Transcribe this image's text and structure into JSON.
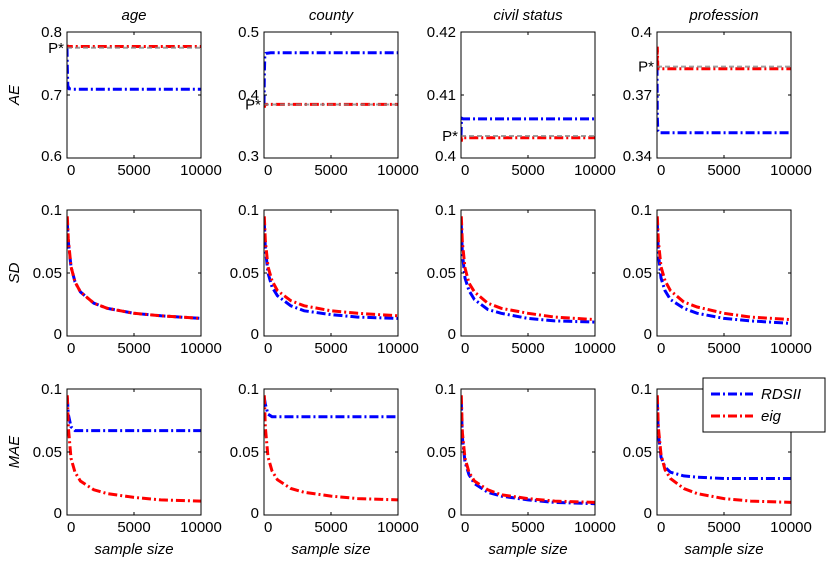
{
  "chart_data": {
    "type": "line",
    "grid": false,
    "legend": {
      "placement": "top-right of bottom-right panel",
      "entries": [
        "RDSII",
        "eig"
      ]
    },
    "series_styles": [
      {
        "name": "RDSII",
        "color": "#0000ff",
        "dash": "dash-dot"
      },
      {
        "name": "eig",
        "color": "#ff0000",
        "dash": "dash-dot"
      }
    ],
    "columns": [
      "age",
      "county",
      "civil status",
      "profession"
    ],
    "rows": [
      "AE",
      "SD",
      "MAE"
    ],
    "xlabel": "sample size",
    "x_ticks": [
      "0",
      "5000",
      "10000"
    ],
    "xlim": [
      0,
      10000
    ],
    "panels": [
      {
        "row": "AE",
        "col": "age",
        "ylim": [
          0.6,
          0.8
        ],
        "y_ticks": [
          "0.6",
          "0.7",
          "0.8"
        ],
        "p_star": {
          "label": "P*",
          "value": 0.775
        },
        "series": [
          {
            "name": "RDSII",
            "x": [
              0,
              20,
              60,
              150,
              500,
              2000,
              5000,
              10000
            ],
            "y": [
              0.775,
              0.745,
              0.715,
              0.71,
              0.709,
              0.709,
              0.709,
              0.709
            ]
          },
          {
            "name": "eig",
            "x": [
              0,
              20,
              60,
              150,
              500,
              2000,
              5000,
              10000
            ],
            "y": [
              0.775,
              0.779,
              0.777,
              0.777,
              0.777,
              0.777,
              0.777,
              0.777
            ]
          }
        ]
      },
      {
        "row": "AE",
        "col": "county",
        "ylim": [
          0.3,
          0.5
        ],
        "y_ticks": [
          "0.3",
          "0.4",
          "0.5"
        ],
        "p_star": {
          "label": "P*",
          "value": 0.385
        },
        "series": [
          {
            "name": "RDSII",
            "x": [
              0,
              20,
              60,
              150,
              500,
              2000,
              5000,
              10000
            ],
            "y": [
              0.385,
              0.43,
              0.462,
              0.466,
              0.467,
              0.467,
              0.467,
              0.467
            ]
          },
          {
            "name": "eig",
            "x": [
              0,
              20,
              60,
              150,
              500,
              2000,
              5000,
              10000
            ],
            "y": [
              0.385,
              0.38,
              0.384,
              0.385,
              0.385,
              0.385,
              0.385,
              0.385
            ]
          }
        ]
      },
      {
        "row": "AE",
        "col": "civil status",
        "ylim": [
          0.4,
          0.42
        ],
        "y_ticks": [
          "0.4",
          "0.41",
          "0.42"
        ],
        "p_star": {
          "label": "P*",
          "value": 0.4035
        },
        "series": [
          {
            "name": "RDSII",
            "x": [
              0,
              20,
              60,
              150,
              500,
              2000,
              5000,
              10000
            ],
            "y": [
              0.4035,
              0.4055,
              0.4063,
              0.4062,
              0.4062,
              0.4062,
              0.4062,
              0.4062
            ]
          },
          {
            "name": "eig",
            "x": [
              0,
              20,
              60,
              150,
              500,
              2000,
              5000,
              10000
            ],
            "y": [
              0.4035,
              0.4026,
              0.4032,
              0.4032,
              0.4032,
              0.4032,
              0.4032,
              0.4032
            ]
          }
        ]
      },
      {
        "row": "AE",
        "col": "profession",
        "ylim": [
          0.34,
          0.4
        ],
        "y_ticks": [
          "0.34",
          "0.37",
          "0.4"
        ],
        "p_star": {
          "label": "P*",
          "value": 0.3835
        },
        "series": [
          {
            "name": "RDSII",
            "x": [
              0,
              20,
              60,
              150,
              500,
              2000,
              5000,
              10000
            ],
            "y": [
              0.3835,
              0.36,
              0.353,
              0.352,
              0.352,
              0.352,
              0.352,
              0.352
            ]
          },
          {
            "name": "eig",
            "x": [
              0,
              20,
              60,
              150,
              500,
              2000,
              5000,
              10000
            ],
            "y": [
              0.3835,
              0.393,
              0.383,
              0.3825,
              0.3825,
              0.3825,
              0.3825,
              0.3825
            ]
          }
        ]
      },
      {
        "row": "SD",
        "col": "age",
        "ylim": [
          0,
          0.1
        ],
        "y_ticks": [
          "0",
          "0.05",
          "0.1"
        ],
        "series": [
          {
            "name": "RDSII",
            "x": [
              20,
              100,
              300,
              600,
              1000,
              2000,
              3000,
              5000,
              7000,
              10000
            ],
            "y": [
              0.09,
              0.075,
              0.055,
              0.043,
              0.035,
              0.026,
              0.022,
              0.018,
              0.016,
              0.014
            ]
          },
          {
            "name": "eig",
            "x": [
              20,
              100,
              300,
              600,
              1000,
              2000,
              3000,
              5000,
              7000,
              10000
            ],
            "y": [
              0.095,
              0.077,
              0.055,
              0.043,
              0.035,
              0.026,
              0.022,
              0.018,
              0.016,
              0.014
            ]
          }
        ]
      },
      {
        "row": "SD",
        "col": "county",
        "ylim": [
          0,
          0.1
        ],
        "y_ticks": [
          "0",
          "0.05",
          "0.1"
        ],
        "series": [
          {
            "name": "RDSII",
            "x": [
              20,
              100,
              300,
              600,
              1000,
              2000,
              3000,
              5000,
              7000,
              10000
            ],
            "y": [
              0.09,
              0.07,
              0.05,
              0.039,
              0.032,
              0.024,
              0.02,
              0.017,
              0.015,
              0.014
            ]
          },
          {
            "name": "eig",
            "x": [
              20,
              100,
              300,
              600,
              1000,
              2000,
              3000,
              5000,
              7000,
              10000
            ],
            "y": [
              0.095,
              0.076,
              0.055,
              0.044,
              0.036,
              0.028,
              0.024,
              0.02,
              0.018,
              0.016
            ]
          }
        ]
      },
      {
        "row": "SD",
        "col": "civil status",
        "ylim": [
          0,
          0.1
        ],
        "y_ticks": [
          "0",
          "0.05",
          "0.1"
        ],
        "series": [
          {
            "name": "RDSII",
            "x": [
              20,
              100,
              300,
              600,
              1000,
              2000,
              3000,
              5000,
              7000,
              10000
            ],
            "y": [
              0.088,
              0.066,
              0.046,
              0.036,
              0.029,
              0.021,
              0.018,
              0.014,
              0.012,
              0.011
            ]
          },
          {
            "name": "eig",
            "x": [
              20,
              100,
              300,
              600,
              1000,
              2000,
              3000,
              5000,
              7000,
              10000
            ],
            "y": [
              0.095,
              0.075,
              0.054,
              0.042,
              0.035,
              0.026,
              0.022,
              0.018,
              0.015,
              0.013
            ]
          }
        ]
      },
      {
        "row": "SD",
        "col": "profession",
        "ylim": [
          0,
          0.1
        ],
        "y_ticks": [
          "0",
          "0.05",
          "0.1"
        ],
        "series": [
          {
            "name": "RDSII",
            "x": [
              20,
              100,
              300,
              600,
              1000,
              2000,
              3000,
              5000,
              7000,
              10000
            ],
            "y": [
              0.09,
              0.066,
              0.046,
              0.036,
              0.029,
              0.022,
              0.018,
              0.014,
              0.012,
              0.01
            ]
          },
          {
            "name": "eig",
            "x": [
              20,
              100,
              300,
              600,
              1000,
              2000,
              3000,
              5000,
              7000,
              10000
            ],
            "y": [
              0.095,
              0.076,
              0.055,
              0.044,
              0.036,
              0.027,
              0.023,
              0.018,
              0.015,
              0.013
            ]
          }
        ]
      },
      {
        "row": "MAE",
        "col": "age",
        "ylim": [
          0,
          0.1
        ],
        "y_ticks": [
          "0",
          "0.05",
          "0.1"
        ],
        "series": [
          {
            "name": "RDSII",
            "x": [
              20,
              100,
              300,
              600,
              1000,
              2000,
              5000,
              10000
            ],
            "y": [
              0.093,
              0.08,
              0.07,
              0.067,
              0.067,
              0.067,
              0.067,
              0.067
            ]
          },
          {
            "name": "eig",
            "x": [
              20,
              100,
              300,
              600,
              1000,
              2000,
              3000,
              5000,
              7000,
              10000
            ],
            "y": [
              0.095,
              0.07,
              0.045,
              0.034,
              0.027,
              0.02,
              0.017,
              0.014,
              0.012,
              0.011
            ]
          }
        ]
      },
      {
        "row": "MAE",
        "col": "county",
        "ylim": [
          0,
          0.1
        ],
        "y_ticks": [
          "0",
          "0.05",
          "0.1"
        ],
        "series": [
          {
            "name": "RDSII",
            "x": [
              20,
              100,
              300,
              600,
              1000,
              2000,
              5000,
              10000
            ],
            "y": [
              0.093,
              0.088,
              0.08,
              0.078,
              0.078,
              0.078,
              0.078,
              0.078
            ]
          },
          {
            "name": "eig",
            "x": [
              20,
              100,
              300,
              600,
              1000,
              2000,
              3000,
              5000,
              7000,
              10000
            ],
            "y": [
              0.095,
              0.07,
              0.046,
              0.035,
              0.028,
              0.021,
              0.018,
              0.015,
              0.013,
              0.012
            ]
          }
        ]
      },
      {
        "row": "MAE",
        "col": "civil status",
        "ylim": [
          0,
          0.1
        ],
        "y_ticks": [
          "0",
          "0.05",
          "0.1"
        ],
        "series": [
          {
            "name": "RDSII",
            "x": [
              20,
              100,
              300,
              600,
              1000,
              2000,
              3000,
              5000,
              7000,
              10000
            ],
            "y": [
              0.09,
              0.062,
              0.042,
              0.032,
              0.025,
              0.018,
              0.015,
              0.012,
              0.01,
              0.009
            ]
          },
          {
            "name": "eig",
            "x": [
              20,
              100,
              300,
              600,
              1000,
              2000,
              3000,
              5000,
              7000,
              10000
            ],
            "y": [
              0.095,
              0.066,
              0.045,
              0.034,
              0.027,
              0.02,
              0.016,
              0.013,
              0.011,
              0.01
            ]
          }
        ]
      },
      {
        "row": "MAE",
        "col": "profession",
        "ylim": [
          0,
          0.1
        ],
        "y_ticks": [
          "0",
          "0.05",
          "0.1"
        ],
        "series": [
          {
            "name": "RDSII",
            "x": [
              20,
              100,
              300,
              600,
              1000,
              2000,
              3000,
              5000,
              7000,
              10000
            ],
            "y": [
              0.09,
              0.065,
              0.046,
              0.038,
              0.034,
              0.031,
              0.03,
              0.029,
              0.029,
              0.029
            ]
          },
          {
            "name": "eig",
            "x": [
              20,
              100,
              300,
              600,
              1000,
              2000,
              3000,
              5000,
              7000,
              10000
            ],
            "y": [
              0.095,
              0.07,
              0.048,
              0.036,
              0.029,
              0.021,
              0.017,
              0.013,
              0.011,
              0.01
            ]
          }
        ]
      }
    ]
  }
}
